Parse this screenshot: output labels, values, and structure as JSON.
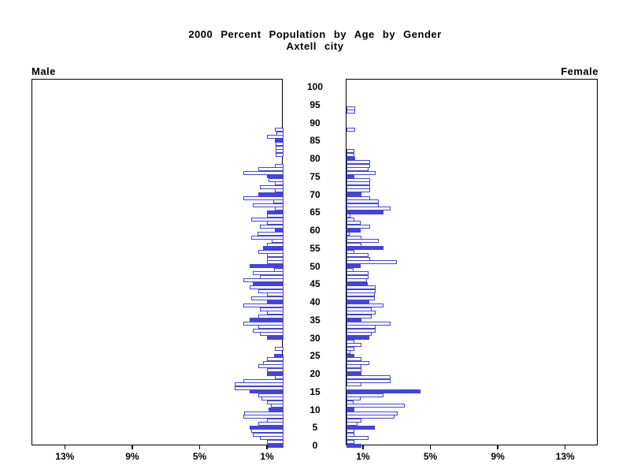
{
  "title": {
    "line1": "2000 Percent Population by Age by Gender",
    "line2": "Axtell city"
  },
  "panels": {
    "left": {
      "label": "Male"
    },
    "right": {
      "label": "Female"
    }
  },
  "axes": {
    "age_tick_labels": [
      "0",
      "5",
      "10",
      "15",
      "20",
      "25",
      "30",
      "35",
      "40",
      "45",
      "50",
      "55",
      "60",
      "65",
      "70",
      "75",
      "80",
      "85",
      "90",
      "95",
      "100"
    ],
    "pct_tick_values": [
      1,
      5,
      9,
      13
    ],
    "pct_tick_labels": [
      "1%",
      "5%",
      "9%",
      "13%"
    ]
  },
  "colors": {
    "bar_blue": "#4343DE",
    "bar_white": "#FFFFFF",
    "frame_black": "#000000"
  },
  "chart_data": {
    "type": "bar",
    "subtype": "population-pyramid",
    "title": "2000 Percent Population by Age by Gender",
    "subtitle": "Axtell city",
    "x_unit": "percent of population",
    "xlim_each_side": [
      0,
      15
    ],
    "x_ticks_percent": [
      1,
      5,
      9,
      13
    ],
    "age_min": 0,
    "age_max": 100,
    "age_bin_years": 1,
    "age_axis_labels_every": 5,
    "solid_blue_bars_at_ages_divisible_by": 5,
    "legend_position": "none",
    "grid": false,
    "series": [
      {
        "name": "Male",
        "side": "left",
        "values_pct_by_age_0_to_100": [
          1.0,
          1.0,
          1.4,
          1.8,
          1.9,
          2.0,
          1.5,
          1.0,
          2.4,
          2.35,
          0.9,
          0.75,
          1.0,
          1.3,
          1.5,
          2.0,
          2.9,
          2.9,
          2.4,
          0.5,
          1.0,
          1.0,
          1.5,
          1.2,
          1.0,
          0.55,
          0,
          0.5,
          0,
          0,
          1.0,
          1.4,
          1.8,
          1.5,
          2.4,
          2.0,
          1.5,
          1.0,
          1.4,
          2.4,
          1.0,
          1.9,
          1.0,
          1.5,
          2.0,
          1.8,
          2.4,
          1.4,
          1.8,
          0.55,
          2.0,
          1.0,
          1.0,
          1.0,
          1.5,
          1.2,
          1.0,
          0.7,
          1.9,
          1.55,
          0.5,
          1.4,
          1.0,
          1.9,
          1.0,
          1.0,
          0.5,
          1.8,
          0.6,
          2.4,
          1.5,
          0.5,
          1.4,
          0.5,
          0.9,
          1.0,
          2.4,
          1.5,
          0.5,
          0,
          0,
          0.45,
          0.45,
          0.45,
          0.45,
          0.5,
          1.0,
          0.4,
          0.5,
          0,
          0,
          0,
          0,
          0,
          0,
          0,
          0,
          0,
          0,
          0,
          0
        ]
      },
      {
        "name": "Female",
        "side": "right",
        "values_pct_by_age_0_to_100": [
          0.9,
          0.45,
          1.3,
          0.45,
          0.45,
          1.7,
          0.65,
          0.9,
          2.85,
          3.05,
          0.45,
          3.45,
          0.4,
          0.85,
          2.2,
          4.4,
          0,
          0.9,
          2.6,
          2.6,
          0.9,
          0.9,
          0.9,
          1.35,
          0.9,
          0.45,
          0.25,
          0.45,
          0.9,
          0.45,
          1.35,
          1.5,
          1.75,
          1.75,
          2.6,
          0.9,
          1.5,
          1.75,
          1.5,
          2.2,
          1.35,
          1.7,
          1.7,
          1.75,
          1.75,
          1.25,
          1.2,
          1.3,
          1.3,
          0.4,
          0.85,
          3.0,
          1.4,
          1.3,
          0.45,
          2.2,
          0.9,
          1.9,
          0.9,
          0.2,
          0.85,
          1.4,
          0.85,
          0.45,
          0.25,
          2.2,
          2.6,
          1.9,
          1.9,
          1.4,
          0.9,
          1.4,
          1.4,
          1.4,
          1.4,
          0.45,
          1.75,
          1.3,
          1.4,
          1.4,
          0.5,
          0.45,
          0.45,
          0,
          0,
          0,
          0,
          0,
          0.5,
          0,
          0,
          0,
          0,
          0.5,
          0.5,
          0,
          0,
          0,
          0,
          0,
          0,
          0
        ]
      }
    ]
  }
}
